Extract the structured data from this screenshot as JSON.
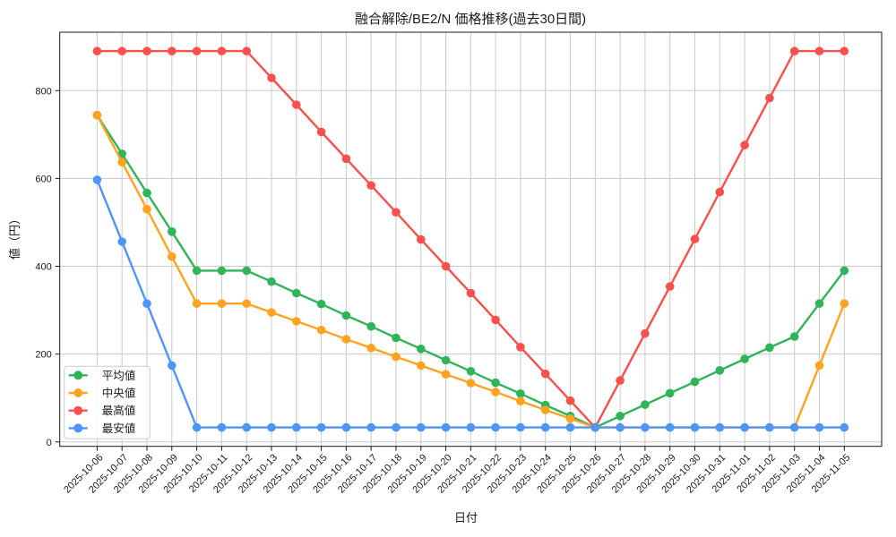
{
  "window": {
    "title": "融合解除/BE2/N 価格推移(過去30日間)"
  },
  "chart_data": {
    "type": "line",
    "title": "融合解除/BE2/N 価格推移(過去30日間)",
    "xlabel": "日付",
    "ylabel": "値（円）",
    "x": [
      "2025-10-06",
      "2025-10-07",
      "2025-10-08",
      "2025-10-09",
      "2025-10-10",
      "2025-10-11",
      "2025-10-12",
      "2025-10-13",
      "2025-10-14",
      "2025-10-15",
      "2025-10-16",
      "2025-10-17",
      "2025-10-18",
      "2025-10-19",
      "2025-10-20",
      "2025-10-21",
      "2025-10-22",
      "2025-10-23",
      "2025-10-24",
      "2025-10-25",
      "2025-10-26",
      "2025-10-27",
      "2025-10-28",
      "2025-10-29",
      "2025-10-30",
      "2025-10-31",
      "2025-11-01",
      "2025-11-02",
      "2025-11-03",
      "2025-11-04",
      "2025-11-05"
    ],
    "series": [
      {
        "id": "mean",
        "name": "平均値",
        "color": "#30b45a",
        "values": [
          744,
          656,
          567,
          479,
          390,
          390,
          390,
          365,
          339,
          314,
          288,
          263,
          237,
          212,
          186,
          161,
          135,
          110,
          84,
          59,
          33,
          59,
          85,
          111,
          137,
          163,
          189,
          215,
          240,
          315,
          390
        ]
      },
      {
        "id": "median",
        "name": "中央値",
        "color": "#ffa320",
        "values": [
          744,
          637,
          530,
          422,
          315,
          315,
          315,
          295,
          275,
          255,
          234,
          214,
          194,
          174,
          154,
          134,
          114,
          93,
          73,
          53,
          33,
          33,
          33,
          33,
          33,
          33,
          33,
          33,
          33,
          174,
          315
        ]
      },
      {
        "id": "max",
        "name": "最高値",
        "color": "#f8514d",
        "values": [
          890,
          890,
          890,
          890,
          890,
          890,
          890,
          829,
          768,
          706,
          645,
          584,
          523,
          461,
          400,
          339,
          278,
          216,
          155,
          94,
          33,
          140,
          247,
          354,
          462,
          569,
          676,
          783,
          890,
          890,
          890
        ]
      },
      {
        "id": "min",
        "name": "最安値",
        "color": "#4d96f8",
        "values": [
          597,
          456,
          315,
          174,
          33,
          33,
          33,
          33,
          33,
          33,
          33,
          33,
          33,
          33,
          33,
          33,
          33,
          33,
          33,
          33,
          33,
          33,
          33,
          33,
          33,
          33,
          33,
          33,
          33,
          33,
          33
        ]
      }
    ],
    "yticks": [
      0,
      200,
      400,
      600,
      800
    ],
    "ylim": [
      -10,
      933
    ],
    "grid": true,
    "legend_position": "lower-left",
    "colors": {
      "grid": "#cacaca",
      "spine": "#1a1a1a",
      "background": "#ffffff",
      "legend_border": "#cccccc"
    }
  }
}
